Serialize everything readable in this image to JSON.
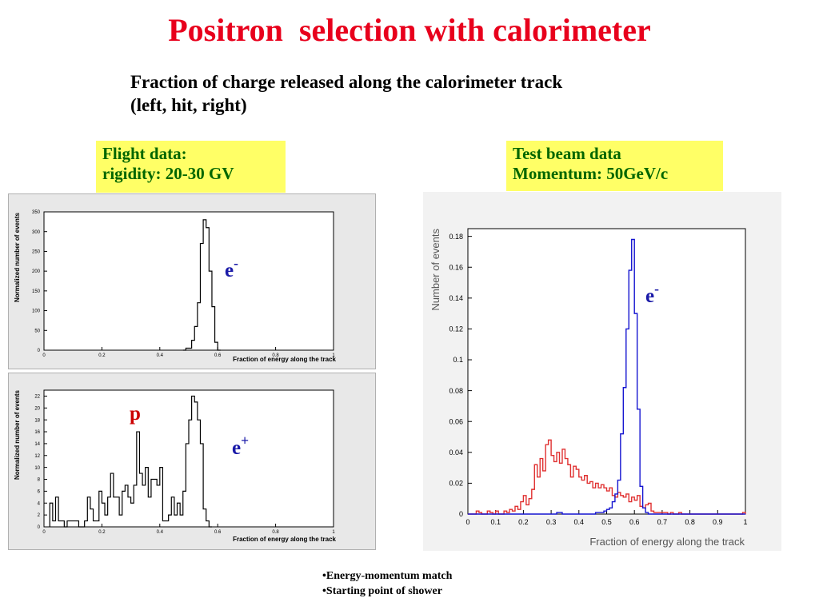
{
  "title": "Positron  selection with calorimeter",
  "subtitle": [
    "Fraction of charge released along the calorimeter track",
    "(left, hit, right)"
  ],
  "flight_box": [
    "Flight data:",
    "rigidity: 20-30 GV"
  ],
  "testbeam_box": [
    "Test beam data",
    "Momentum: 50GeV/c"
  ],
  "bullets": [
    "•Energy-momentum match",
    "•Starting point of shower"
  ],
  "colors": {
    "title": "#e8001c",
    "box_bg": "#ffff66",
    "box_text": "#006600",
    "label_blue": "#1a1aa8",
    "label_red": "#cc0000",
    "red_hist": "#e03030",
    "blue_hist": "#1515d0"
  },
  "chart_data": [
    {
      "type": "histogram",
      "xlabel": "Fraction of energy along the track",
      "ylabel": "Normalized number of events",
      "xlim": [
        0,
        1
      ],
      "ylim": [
        0,
        350
      ],
      "xticks": [
        0,
        0.2,
        0.4,
        0.6,
        0.8,
        1
      ],
      "xtick_labels": [
        "0",
        "0.2",
        "0.4",
        "0.6",
        "0.8",
        "1"
      ],
      "yticks": [
        0,
        50,
        100,
        150,
        200,
        250,
        300,
        350
      ],
      "ytick_labels": [
        "0",
        "50",
        "100",
        "150",
        "200",
        "250",
        "300",
        "350"
      ],
      "annotation": {
        "base": "e",
        "sup": "-"
      },
      "series": [
        {
          "color": "#000000",
          "bin_start": 0.48,
          "bin_width": 0.01,
          "values": [
            0,
            5,
            5,
            25,
            60,
            120,
            270,
            330,
            310,
            200,
            110,
            20,
            0
          ]
        }
      ]
    },
    {
      "type": "histogram",
      "xlabel": "Fraction of energy along the track",
      "ylabel": "Normalized number of events",
      "xlim": [
        0,
        1
      ],
      "ylim": [
        0,
        23
      ],
      "xticks": [
        0,
        0.2,
        0.4,
        0.6,
        0.8,
        1
      ],
      "xtick_labels": [
        "0",
        "0.2",
        "0.4",
        "0.6",
        "0.8",
        "1"
      ],
      "yticks": [
        0,
        2,
        4,
        6,
        8,
        10,
        12,
        14,
        16,
        18,
        20,
        22
      ],
      "ytick_labels": [
        "0",
        "2",
        "4",
        "6",
        "8",
        "10",
        "12",
        "14",
        "16",
        "18",
        "20",
        "22"
      ],
      "annotations": [
        {
          "base": "p",
          "sup": ""
        },
        {
          "base": "e",
          "sup": "+"
        }
      ],
      "series": [
        {
          "color": "#000000",
          "bin_start": 0.02,
          "bin_width": 0.01,
          "values": [
            4,
            1,
            5,
            1,
            1,
            0,
            1,
            1,
            1,
            1,
            0,
            0,
            1,
            5,
            3,
            1,
            1,
            6,
            4,
            2,
            5,
            9,
            5,
            5,
            2,
            6,
            7,
            5,
            4,
            7,
            16,
            9,
            7,
            10,
            5,
            8,
            8,
            7,
            10,
            1,
            1,
            2,
            5,
            2,
            4,
            2,
            6,
            14,
            18,
            22,
            21,
            18,
            14,
            3,
            1,
            0
          ]
        }
      ]
    },
    {
      "type": "histogram",
      "xlabel": "Fraction of energy along the track",
      "ylabel": "Number of events",
      "xlim": [
        0,
        1
      ],
      "ylim": [
        0,
        0.185
      ],
      "xticks": [
        0,
        0.1,
        0.2,
        0.3,
        0.4,
        0.5,
        0.6,
        0.7,
        0.8,
        0.9,
        1
      ],
      "xtick_labels": [
        "0",
        "0.1",
        "0.2",
        "0.3",
        "0.4",
        "0.5",
        "0.6",
        "0.7",
        "0.8",
        "0.9",
        "1"
      ],
      "yticks": [
        0,
        0.02,
        0.04,
        0.06,
        0.08,
        0.1,
        0.12,
        0.14,
        0.16,
        0.18
      ],
      "ytick_labels": [
        "0",
        "0.02",
        "0.04",
        "0.06",
        "0.08",
        "0.1",
        "0.12",
        "0.14",
        "0.16",
        "0.18"
      ],
      "annotation": {
        "base": "e",
        "sup": "-"
      },
      "series": [
        {
          "color": "#e03030",
          "bin_start": 0.0,
          "bin_width": 0.01,
          "values": [
            0,
            0,
            0,
            0.002,
            0.001,
            0,
            0,
            0.002,
            0.001,
            0,
            0.002,
            0,
            0,
            0.002,
            0.001,
            0.003,
            0.002,
            0.005,
            0.003,
            0.008,
            0.012,
            0.006,
            0.01,
            0.016,
            0.032,
            0.024,
            0.036,
            0.028,
            0.045,
            0.048,
            0.038,
            0.034,
            0.04,
            0.033,
            0.042,
            0.036,
            0.032,
            0.024,
            0.031,
            0.029,
            0.024,
            0.022,
            0.025,
            0.02,
            0.021,
            0.017,
            0.02,
            0.017,
            0.019,
            0.017,
            0.015,
            0.017,
            0.012,
            0.011,
            0.014,
            0.012,
            0.011,
            0.013,
            0.008,
            0.011,
            0.009,
            0.012,
            0.005,
            0.004,
            0.006,
            0.007,
            0.002,
            0.001,
            0.001,
            0.001,
            0.001,
            0.001,
            0,
            0.001,
            0,
            0,
            0.001,
            0,
            0,
            0,
            0,
            0,
            0,
            0,
            0,
            0,
            0,
            0,
            0,
            0,
            0,
            0,
            0,
            0,
            0,
            0,
            0,
            0,
            0,
            0.001
          ]
        },
        {
          "color": "#1515d0",
          "bin_start": 0.0,
          "bin_width": 0.01,
          "values": [
            0,
            0,
            0,
            0,
            0,
            0,
            0,
            0,
            0,
            0,
            0,
            0,
            0,
            0,
            0,
            0,
            0,
            0,
            0,
            0,
            0,
            0,
            0,
            0,
            0,
            0,
            0,
            0,
            0,
            0,
            0,
            0,
            0.001,
            0.001,
            0,
            0,
            0,
            0,
            0,
            0,
            0,
            0,
            0,
            0,
            0,
            0,
            0.001,
            0.001,
            0.001,
            0.002,
            0.003,
            0.004,
            0.008,
            0.013,
            0.022,
            0.052,
            0.082,
            0.12,
            0.158,
            0.178,
            0.13,
            0.068,
            0.018,
            0.004,
            0.001,
            0,
            0,
            0,
            0,
            0,
            0,
            0,
            0,
            0,
            0,
            0,
            0,
            0,
            0,
            0,
            0,
            0,
            0,
            0,
            0,
            0,
            0,
            0,
            0,
            0,
            0,
            0,
            0,
            0,
            0,
            0,
            0,
            0,
            0,
            0
          ]
        }
      ]
    }
  ]
}
